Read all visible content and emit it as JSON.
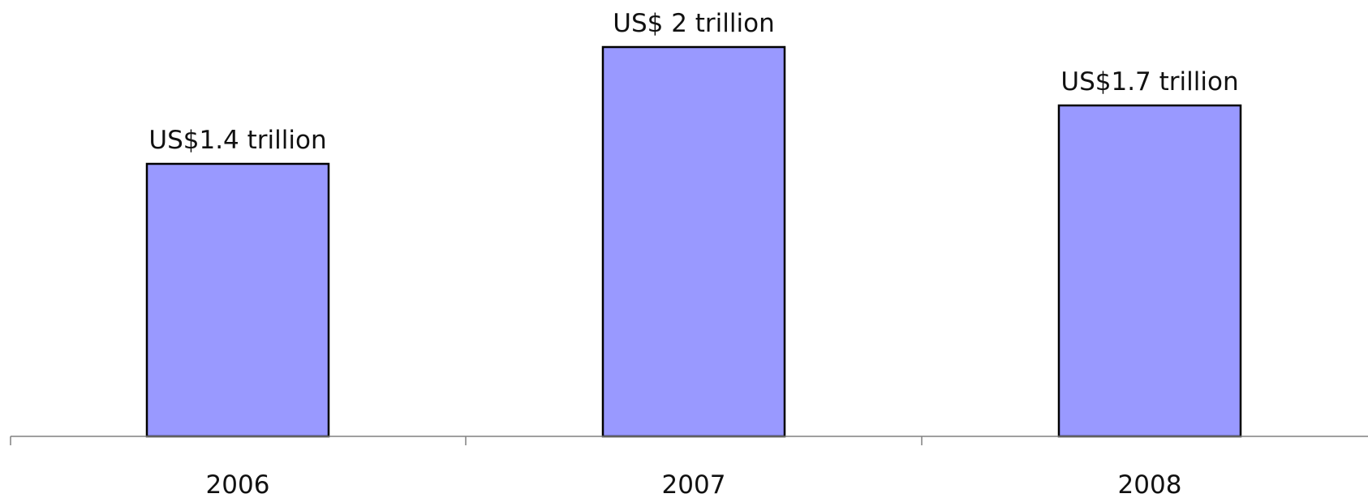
{
  "chart_data": {
    "type": "bar",
    "title": "",
    "xlabel": "",
    "ylabel": "",
    "categories": [
      "2006",
      "2007",
      "2008"
    ],
    "values": [
      1.4,
      2.0,
      1.7
    ],
    "data_labels": [
      "US$1.4 trillion",
      "US$ 2 trillion",
      "US$1.7 trillion"
    ],
    "ylim": [
      0,
      2.0
    ],
    "grid": false,
    "legend": "none",
    "bar_color": "#9999ff",
    "bar_edge_color": "#000000"
  }
}
